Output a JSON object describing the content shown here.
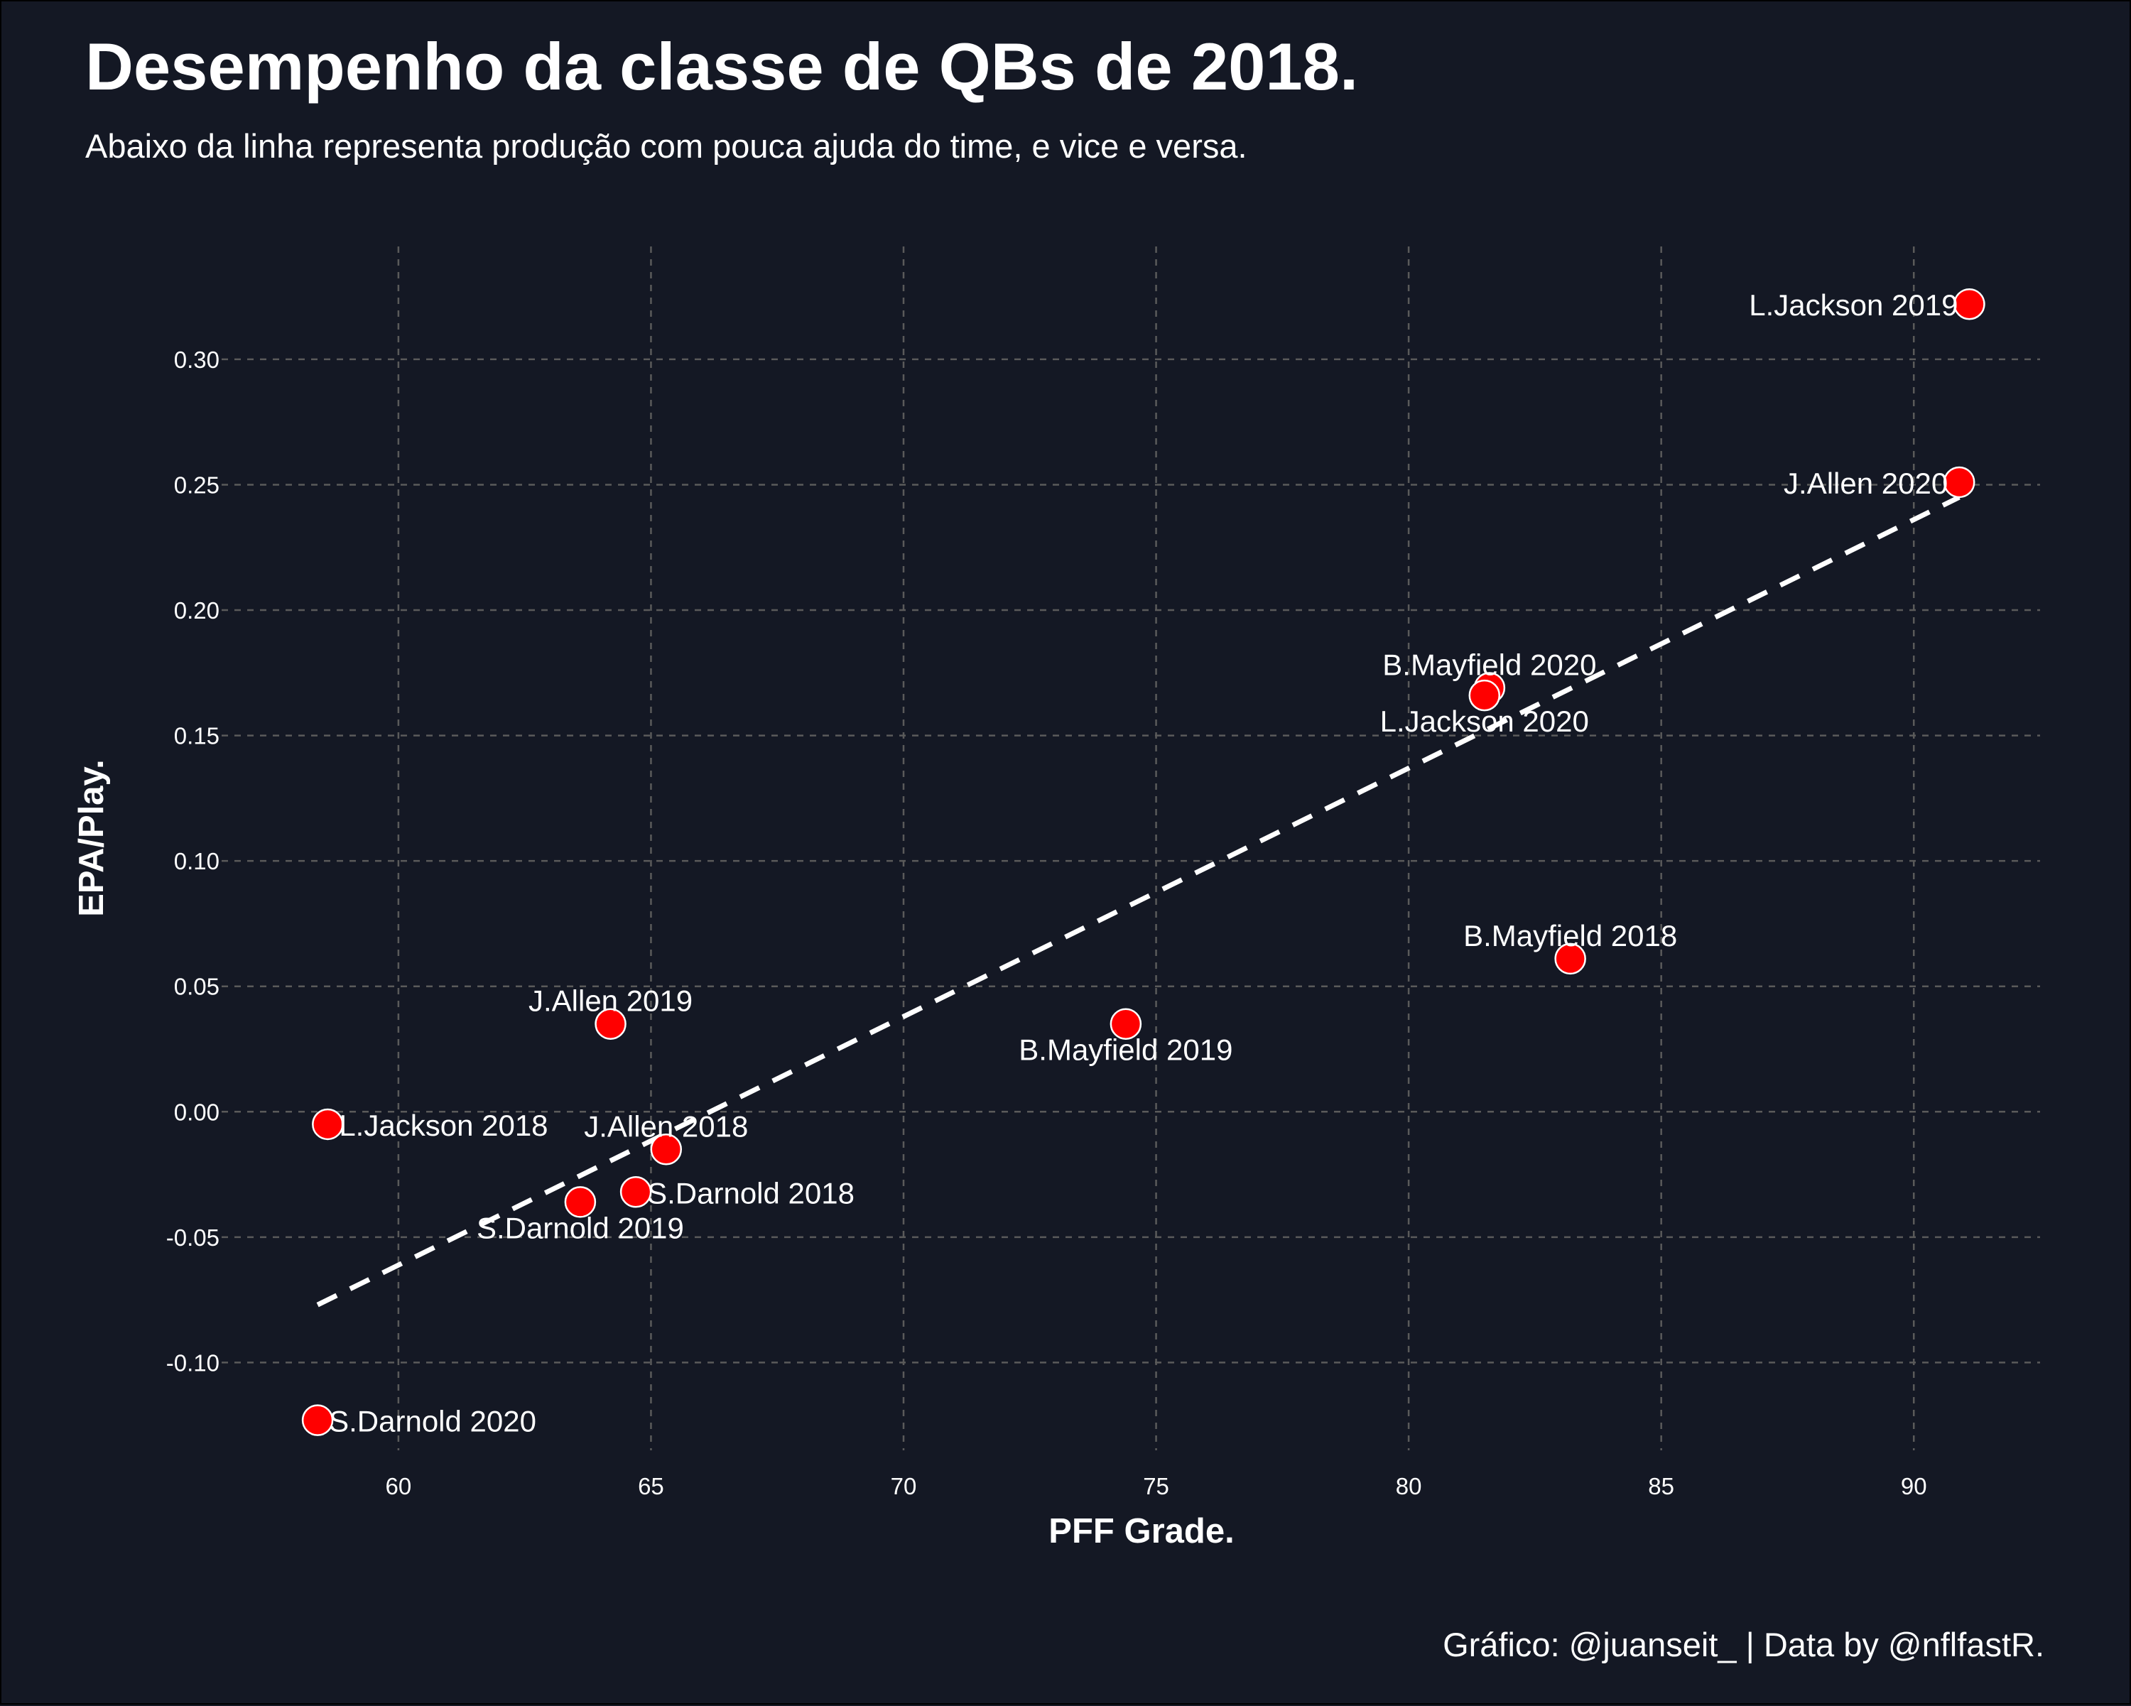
{
  "header": {
    "title": "Desempenho da classe de QBs de 2018.",
    "subtitle": "Abaixo da linha representa produção com pouca ajuda do time, e vice e versa."
  },
  "footer": {
    "caption": "Gráfico: @juanseit_ | Data by @nflfastR."
  },
  "colors": {
    "background": "#141824",
    "point_fill": "#ff0000",
    "point_stroke": "#ffffff",
    "grid": "#5a5a5a",
    "text": "#ffffff",
    "trend_line": "#ffffff"
  },
  "chart_data": {
    "type": "scatter",
    "title": "Desempenho da classe de QBs de 2018.",
    "subtitle": "Abaixo da linha representa produção com pouca ajuda do time, e vice e versa.",
    "xlabel": "PFF Grade.",
    "ylabel": "EPA/Play.",
    "xlim": [
      56.5,
      92.5
    ],
    "ylim": [
      -0.135,
      0.345
    ],
    "x_ticks": [
      60,
      65,
      70,
      75,
      80,
      85,
      90
    ],
    "x_tick_labels": [
      "60",
      "65",
      "70",
      "75",
      "80",
      "85",
      "90"
    ],
    "y_ticks": [
      -0.1,
      -0.05,
      0.0,
      0.05,
      0.1,
      0.15,
      0.2,
      0.25,
      0.3
    ],
    "y_tick_labels": [
      "-0.10",
      "-0.05",
      "0.00",
      "0.05",
      "0.10",
      "0.15",
      "0.20",
      "0.25",
      "0.30"
    ],
    "grid": true,
    "grid_style": "dashed",
    "trend_line": {
      "style": "dashed",
      "x": [
        58.4,
        90.9
      ],
      "y": [
        -0.077,
        0.245
      ]
    },
    "points": [
      {
        "label": "L.Jackson 2019",
        "x": 91.1,
        "y": 0.322,
        "anchor": "end"
      },
      {
        "label": "J.Allen 2020",
        "x": 90.9,
        "y": 0.251,
        "anchor": "end"
      },
      {
        "label": "B.Mayfield 2020",
        "x": 81.6,
        "y": 0.169,
        "anchor": "middle-above"
      },
      {
        "label": "L.Jackson 2020",
        "x": 81.5,
        "y": 0.166,
        "anchor": "middle-below"
      },
      {
        "label": "B.Mayfield 2018",
        "x": 83.2,
        "y": 0.061,
        "anchor": "middle-above"
      },
      {
        "label": "B.Mayfield 2019",
        "x": 74.4,
        "y": 0.035,
        "anchor": "middle-below"
      },
      {
        "label": "J.Allen 2019",
        "x": 64.2,
        "y": 0.035,
        "anchor": "middle-above"
      },
      {
        "label": "L.Jackson 2018",
        "x": 58.6,
        "y": -0.005,
        "anchor": "start"
      },
      {
        "label": "J.Allen 2018",
        "x": 65.3,
        "y": -0.015,
        "anchor": "middle-above"
      },
      {
        "label": "S.Darnold 2018",
        "x": 64.7,
        "y": -0.032,
        "anchor": "start"
      },
      {
        "label": "S.Darnold 2019",
        "x": 63.6,
        "y": -0.036,
        "anchor": "middle-below"
      },
      {
        "label": "S.Darnold 2020",
        "x": 58.4,
        "y": -0.123,
        "anchor": "start"
      }
    ]
  }
}
